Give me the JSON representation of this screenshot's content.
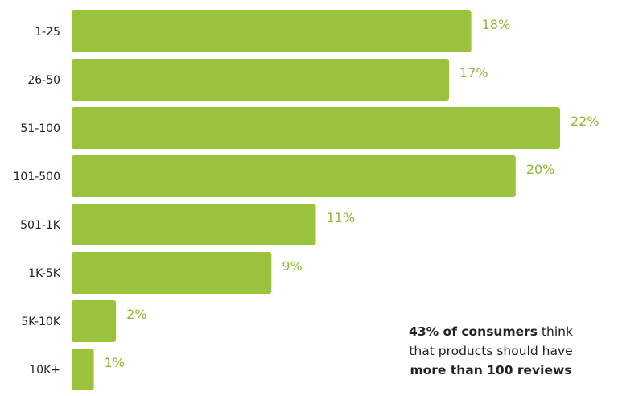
{
  "chart_data": {
    "type": "bar",
    "orientation": "horizontal",
    "title": "",
    "xlabel": "",
    "ylabel": "",
    "categories": [
      "1-25",
      "26-50",
      "51-100",
      "101-500",
      "501-1K",
      "1K-5K",
      "5K-10K",
      "10K+"
    ],
    "values": [
      18,
      17,
      22,
      20,
      11,
      9,
      2,
      1
    ],
    "value_labels": [
      "18%",
      "17%",
      "22%",
      "20%",
      "11%",
      "9%",
      "2%",
      "1%"
    ],
    "xlim": [
      0,
      22
    ],
    "grid": false,
    "bar_color": "#9bc23c",
    "label_color": "#8fba35"
  },
  "annotation": {
    "bold1": "43% of consumers",
    "text1": " think",
    "text2": "that products should have",
    "bold2": "more than 100 reviews"
  }
}
